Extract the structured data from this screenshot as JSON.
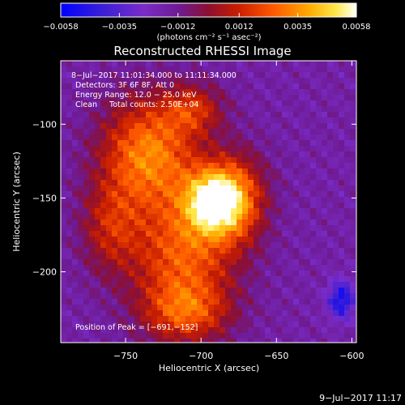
{
  "chart_data": {
    "type": "heatmap",
    "title": "Reconstructed RHESSI Image",
    "xlabel": "Heliocentric X (arcsec)",
    "ylabel": "Heliocentric Y (arcsec)",
    "xlim": [
      -793,
      -597
    ],
    "ylim": [
      -248,
      -57
    ],
    "x_ticks": [
      -750,
      -700,
      -650,
      -600
    ],
    "x_tick_labels": [
      "−750",
      "−700",
      "−650",
      "−600"
    ],
    "y_ticks": [
      -100,
      -150,
      -200
    ],
    "y_tick_labels": [
      "−100",
      "−150",
      "−200"
    ],
    "colorbar": {
      "range": [
        -0.0058,
        0.0058
      ],
      "ticks": [
        -0.0058,
        -0.0035,
        -0.0012,
        0.0012,
        0.0035,
        0.0058
      ],
      "tick_labels": [
        "−0.0058",
        "−0.0035",
        "−0.0012",
        "0.0012",
        "0.0035",
        "0.0058"
      ],
      "unit_label": "(photons cm⁻² s⁻¹ asec⁻²)"
    },
    "annotations": [
      "8−Jul−2017 11:01:34.000 to 11:11:34.000",
      "Detectors: 3F 6F 8F, Att 0",
      "Energy Range: 12.0 − 25.0 keV",
      "Clean     Total counts: 2.50E+04"
    ],
    "peak_label": "Position of Peak = [−691,−152]",
    "peak": [
      -691,
      -152
    ],
    "sources": [
      {
        "x": -691,
        "y": -152,
        "strength": 1.0,
        "sx": 14,
        "sy": 16
      },
      {
        "x": -735,
        "y": -120,
        "strength": 0.75,
        "sx": 22,
        "sy": 26
      },
      {
        "x": -712,
        "y": -190,
        "strength": 0.62,
        "sx": 24,
        "sy": 30
      },
      {
        "x": -705,
        "y": -90,
        "strength": 0.42,
        "sx": 14,
        "sy": 12
      },
      {
        "x": -675,
        "y": -150,
        "strength": 0.45,
        "sx": 14,
        "sy": 22
      },
      {
        "x": -710,
        "y": -228,
        "strength": 0.45,
        "sx": 20,
        "sy": 14
      },
      {
        "x": -760,
        "y": -170,
        "strength": 0.38,
        "sx": 14,
        "sy": 22
      }
    ],
    "background_level": -0.15,
    "min_location": [
      -607,
      -219
    ],
    "palette": "rainbow-purple-red-yellow-white"
  },
  "footer": {
    "timestamp": "9−Jul−2017 11:17"
  }
}
